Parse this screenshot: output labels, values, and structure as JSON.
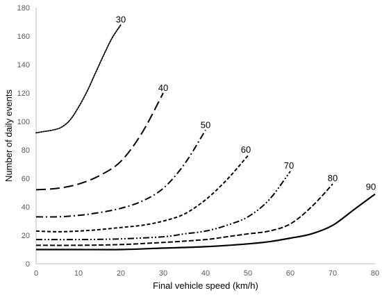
{
  "chart_data": {
    "type": "line",
    "title": "",
    "xlabel": "Final vehicle speed (km/h)",
    "ylabel": "Number of daily events",
    "xlim": [
      0,
      80
    ],
    "ylim": [
      0,
      180
    ],
    "x_ticks": [
      "0",
      "10",
      "20",
      "30",
      "40",
      "50",
      "60",
      "70",
      "80"
    ],
    "y_ticks": [
      "0",
      "20",
      "40",
      "60",
      "80",
      "100",
      "120",
      "140",
      "160",
      "180"
    ],
    "grid": false,
    "legend": "none; series labelled at line ends",
    "series": [
      {
        "name": "30",
        "style": "dotted",
        "x": [
          0,
          2,
          4,
          6,
          8,
          10,
          12,
          14,
          16,
          18,
          20
        ],
        "y": [
          92,
          93,
          94,
          96,
          101,
          110,
          121,
          134,
          147,
          159,
          168
        ]
      },
      {
        "name": "40",
        "style": "long-dash",
        "x": [
          0,
          5,
          10,
          15,
          20,
          25,
          30
        ],
        "y": [
          52,
          53,
          56,
          62,
          72,
          92,
          120
        ]
      },
      {
        "name": "50",
        "style": "dash-dot",
        "x": [
          0,
          5,
          10,
          15,
          20,
          25,
          30,
          35,
          40
        ],
        "y": [
          33,
          33,
          34,
          36,
          39,
          44,
          53,
          70,
          94
        ]
      },
      {
        "name": "60",
        "style": "short-dash",
        "x": [
          0,
          5,
          10,
          15,
          20,
          25,
          30,
          35,
          40,
          45,
          50
        ],
        "y": [
          23,
          22.5,
          23,
          24,
          25.5,
          27,
          30,
          35,
          45,
          59,
          76
        ]
      },
      {
        "name": "70",
        "style": "dash-dot-dot",
        "x": [
          0,
          10,
          20,
          30,
          35,
          40,
          45,
          50,
          55,
          60
        ],
        "y": [
          17,
          17,
          17.5,
          19,
          21,
          23,
          27,
          33,
          45,
          65
        ]
      },
      {
        "name": "80",
        "style": "medium-dash",
        "x": [
          0,
          10,
          20,
          30,
          40,
          45,
          50,
          55,
          60,
          65,
          70
        ],
        "y": [
          13,
          13,
          13.5,
          15,
          17,
          19,
          21,
          23,
          28,
          40,
          56
        ]
      },
      {
        "name": "90",
        "style": "solid",
        "x": [
          0,
          10,
          20,
          30,
          40,
          50,
          55,
          60,
          65,
          70,
          75,
          80
        ],
        "y": [
          10,
          10,
          10,
          11,
          12,
          14,
          15.5,
          18,
          21,
          27,
          38,
          49
        ]
      }
    ]
  }
}
